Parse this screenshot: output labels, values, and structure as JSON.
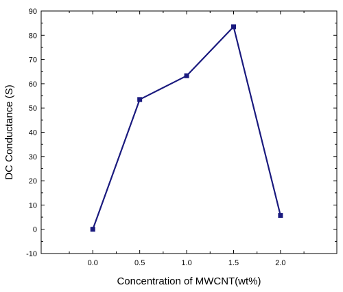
{
  "chart_data": {
    "type": "line",
    "title": "",
    "xlabel": "Concentration of MWCNT(wt%)",
    "ylabel": "DC Conductance (S)",
    "xlim": [
      -0.55,
      2.6
    ],
    "ylim": [
      -10,
      90
    ],
    "xticks": [
      "0.0",
      "0.5",
      "1.0",
      "1.5",
      "2.0"
    ],
    "xtick_values": [
      0.0,
      0.5,
      1.0,
      1.5,
      2.0
    ],
    "yticks": [
      "-10",
      "0",
      "10",
      "20",
      "30",
      "40",
      "50",
      "60",
      "70",
      "80",
      "90"
    ],
    "ytick_values": [
      -10,
      0,
      10,
      20,
      30,
      40,
      50,
      60,
      70,
      80,
      90
    ],
    "grid": false,
    "legend": "none",
    "series": [
      {
        "x": [
          0.0,
          0.5,
          1.0,
          1.5,
          2.0
        ],
        "y": [
          0.0,
          53.5,
          63.3,
          83.5,
          5.7
        ],
        "color": "#1a1a7e",
        "marker": "square"
      }
    ]
  }
}
